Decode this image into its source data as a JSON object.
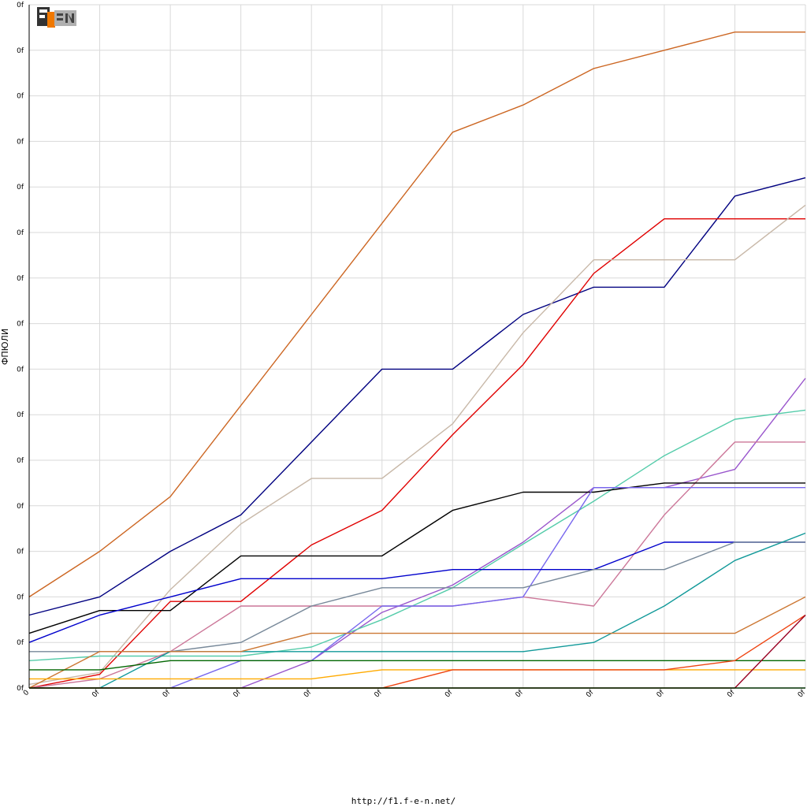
{
  "footer_url": "http://f1.f-e-n.net/",
  "logo": {
    "icon": "f1-fen-logo",
    "text": "F1FEN"
  },
  "colors": {
    "grid": "#d9d9d9",
    "axis": "#000000",
    "background": "#ffffff"
  },
  "chart_data": {
    "type": "line",
    "title": "",
    "xlabel": "",
    "ylabel": "ФПЮЛИ",
    "x": [
      0,
      1,
      2,
      3,
      4,
      5,
      6,
      7,
      8,
      9,
      10,
      11
    ],
    "xtick_labels": [
      "0",
      "0f",
      "0f",
      "0f",
      "0f",
      "0f",
      "0f",
      "0f",
      "0f",
      "0f",
      "0f",
      "0f"
    ],
    "ytick_values": [
      0,
      5,
      10,
      15,
      20,
      25,
      30,
      35,
      40,
      45,
      50,
      55,
      60,
      65,
      70,
      75
    ],
    "ytick_labels": [
      "0f",
      "0f",
      "0f",
      "0f",
      "0f",
      "0f",
      "0f",
      "0f",
      "0f",
      "0f",
      "0f",
      "0f",
      "0f",
      "0f",
      "0f",
      "0f"
    ],
    "xlim": [
      0,
      11
    ],
    "ylim": [
      0,
      75
    ],
    "grid": true,
    "legend": "none",
    "series": [
      {
        "color": "#cc6622",
        "values": [
          10,
          15,
          21,
          31,
          41,
          51,
          61,
          64,
          68,
          70,
          72,
          72
        ]
      },
      {
        "color": "#000080",
        "values": [
          8,
          10,
          15,
          19,
          27,
          35,
          35,
          41,
          44,
          44,
          54,
          56
        ]
      },
      {
        "color": "#e00000",
        "values": [
          0,
          1.5,
          9.5,
          9.5,
          15.7,
          19.5,
          27.8,
          35.5,
          45.5,
          51.5,
          51.5,
          51.5
        ]
      },
      {
        "color": "#c8b8a8",
        "values": [
          0.4,
          1.7,
          10.8,
          18,
          23,
          23,
          29,
          39,
          47,
          47,
          47,
          53
        ]
      },
      {
        "color": "#9955cc",
        "values": [
          0,
          0,
          0,
          0,
          3,
          8.3,
          11.3,
          16,
          22,
          22,
          24,
          34
        ]
      },
      {
        "color": "#55ccaa",
        "values": [
          3,
          3.5,
          3.5,
          3.5,
          4.5,
          7.5,
          11,
          15.8,
          20.5,
          25.5,
          29.5,
          30.5
        ]
      },
      {
        "color": "#cc7799",
        "values": [
          0,
          1,
          4,
          9,
          9,
          9,
          9,
          10,
          9,
          19,
          27,
          27
        ]
      },
      {
        "color": "#000000",
        "values": [
          6,
          8.5,
          8.5,
          14.5,
          14.5,
          14.5,
          19.5,
          21.5,
          21.5,
          22.5,
          22.5,
          22.5
        ]
      },
      {
        "color": "#7766ee",
        "values": [
          0,
          0,
          0,
          3,
          3,
          9,
          9,
          10,
          22,
          22,
          22,
          22
        ]
      },
      {
        "color": "#0000cc",
        "values": [
          5,
          8,
          10,
          12,
          12,
          12,
          13,
          13,
          13,
          16,
          16,
          16
        ]
      },
      {
        "color": "#778899",
        "values": [
          4,
          4,
          4,
          5,
          9,
          11,
          11,
          11,
          13,
          13,
          16,
          16
        ]
      },
      {
        "color": "#119999",
        "values": [
          0,
          0,
          4,
          4,
          4,
          4,
          4,
          4,
          5,
          9,
          14,
          17
        ]
      },
      {
        "color": "#cc7733",
        "values": [
          0,
          4,
          4,
          4,
          6,
          6,
          6,
          6,
          6,
          6,
          6,
          10
        ]
      },
      {
        "color": "#006600",
        "values": [
          2,
          2,
          3,
          3,
          3,
          3,
          3,
          3,
          3,
          3,
          3,
          3
        ]
      },
      {
        "color": "#ffaa00",
        "values": [
          1,
          1,
          1,
          1,
          1,
          2,
          2,
          2,
          2,
          2,
          2,
          2
        ]
      },
      {
        "color": "#ee4411",
        "values": [
          0,
          0,
          0,
          0,
          0,
          0,
          2,
          2,
          2,
          2,
          3,
          8
        ]
      },
      {
        "color": "#990022",
        "values": [
          0,
          0,
          0,
          0,
          0,
          0,
          0,
          0,
          0,
          0,
          0,
          8
        ]
      },
      {
        "color": "#008800",
        "values": [
          0,
          0,
          0,
          0,
          0,
          0,
          0,
          0,
          0,
          0,
          0,
          0
        ]
      }
    ]
  }
}
